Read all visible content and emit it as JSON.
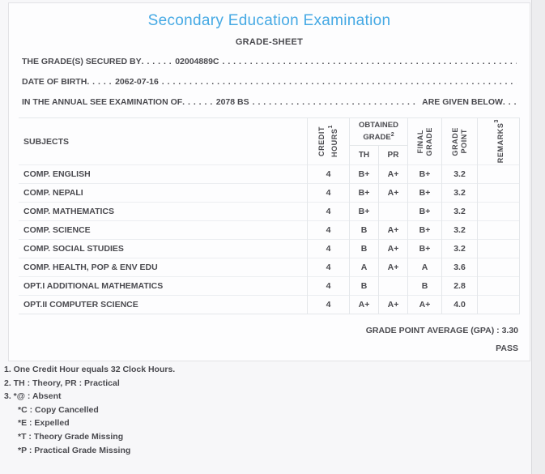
{
  "page": {
    "title": "Secondary Education Examination",
    "subtitle": "GRADE-SHEET"
  },
  "info_lines": [
    {
      "label": "THE GRADE(S) SECURED BY",
      "dots1": ". . . . . .",
      "value": "02004889C",
      "dots2": ". . . . . . . . . . . . . . . . . . . . . . . . . . . . . . . . . . . . . . . . . . . . . . . . . . . . . . . . . . . . . . . . . . . . . . . . . . . . . . . .",
      "tail": "",
      "dots3": ""
    },
    {
      "label": "DATE OF BIRTH",
      "dots1": ". . . . .",
      "value": "2062-07-16",
      "dots2": ". . . . . . . . . . . . . . . . . . . . . . . . . . . . . . . . . . . . . . . . . . . . . . . . . . . . . . . . . . . . . . . . . . . . . . . . . . . . . . . .",
      "tail": "",
      "dots3": ""
    },
    {
      "label": "IN THE ANNUAL SEE EXAMINATION OF",
      "dots1": ". . . . . .",
      "value": "2078 BS",
      "dots2": ". . . . . . . . . . . . . . . . . . . . . . . . . . . . . . . . . . . . . . . . . . . . . . . . . . . . . . . . . . . . . . . . . . . . . . . . . . . . . . . .",
      "tail": "ARE GIVEN BELOW",
      "dots3": ". . ."
    }
  ],
  "table": {
    "headers": {
      "subjects": "SUBJECTS",
      "credit": {
        "lines": [
          "CREDIT",
          "HOURS"
        ],
        "sup": "1"
      },
      "obtained": {
        "lines": [
          "OBTAINED",
          "GRADE"
        ],
        "sup": "2"
      },
      "th": "TH",
      "pr": "PR",
      "final": {
        "lines": [
          "FINAL",
          "GRADE"
        ]
      },
      "point": {
        "lines": [
          "GRADE",
          "POINT"
        ]
      },
      "remarks": {
        "lines": [
          "REMARKS"
        ],
        "sup": "3"
      }
    },
    "rows": [
      {
        "subject": "COMP. ENGLISH",
        "credit": "4",
        "th": "B+",
        "pr": "A+",
        "final": "B+",
        "point": "3.2",
        "remarks": ""
      },
      {
        "subject": "COMP. NEPALI",
        "credit": "4",
        "th": "B+",
        "pr": "A+",
        "final": "B+",
        "point": "3.2",
        "remarks": ""
      },
      {
        "subject": "COMP. MATHEMATICS",
        "credit": "4",
        "th": "B+",
        "pr": "",
        "final": "B+",
        "point": "3.2",
        "remarks": ""
      },
      {
        "subject": "COMP. SCIENCE",
        "credit": "4",
        "th": "B",
        "pr": "A+",
        "final": "B+",
        "point": "3.2",
        "remarks": ""
      },
      {
        "subject": "COMP. SOCIAL STUDIES",
        "credit": "4",
        "th": "B",
        "pr": "A+",
        "final": "B+",
        "point": "3.2",
        "remarks": ""
      },
      {
        "subject": "COMP. HEALTH, POP & ENV EDU",
        "credit": "4",
        "th": "A",
        "pr": "A+",
        "final": "A",
        "point": "3.6",
        "remarks": ""
      },
      {
        "subject": "OPT.I ADDITIONAL MATHEMATICS",
        "credit": "4",
        "th": "B",
        "pr": "",
        "final": "B",
        "point": "2.8",
        "remarks": ""
      },
      {
        "subject": "OPT.II COMPUTER SCIENCE",
        "credit": "4",
        "th": "A+",
        "pr": "A+",
        "final": "A+",
        "point": "4.0",
        "remarks": ""
      }
    ]
  },
  "summary": {
    "gpa_label": "GRADE POINT AVERAGE (GPA) : ",
    "gpa_value": "3.30",
    "result": "PASS"
  },
  "footnotes": [
    {
      "text": "1. One Credit Hour equals 32 Clock Hours."
    },
    {
      "text": "2. TH : Theory, PR : Practical"
    },
    {
      "text": "3. *@ : Absent"
    },
    {
      "text": "*C : Copy Cancelled"
    },
    {
      "text": "*E : Expelled"
    },
    {
      "text": "*T : Theory Grade Missing"
    },
    {
      "text": "*P : Practical Grade Missing"
    }
  ],
  "colors": {
    "title_accent": "#45a9e4",
    "text": "#4a4a4f",
    "card_border": "#e3e3e6",
    "table_border": "#e4e7ea",
    "page_background": "#f7f7f9"
  }
}
